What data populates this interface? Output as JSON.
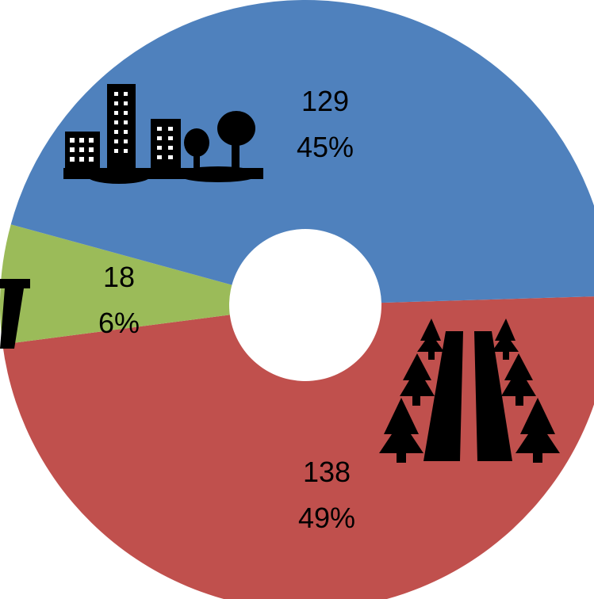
{
  "chart_data": {
    "type": "doughnut",
    "title": "",
    "slices": [
      {
        "value": 129,
        "percent_label": "45%",
        "value_label": "129",
        "color": "#4F81BD",
        "icon": "city-buildings-trees-icon"
      },
      {
        "value": 138,
        "percent_label": "49%",
        "value_label": "138",
        "color": "#C0504D",
        "icon": "road-through-forest-icon"
      },
      {
        "value": 18,
        "percent_label": "6%",
        "value_label": "18",
        "color": "#9BBB59",
        "icon": "rural-structure-icon"
      }
    ],
    "legend": "none",
    "grid": false
  }
}
